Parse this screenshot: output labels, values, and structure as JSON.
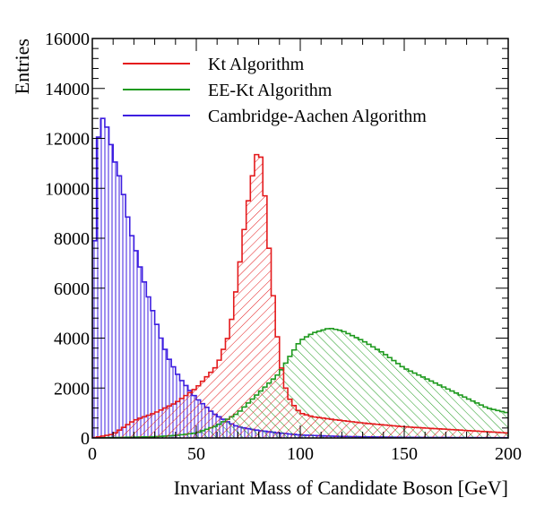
{
  "chart_data": {
    "type": "histogram",
    "title": "",
    "xlabel": "Invariant Mass of Candidate Boson [GeV]",
    "ylabel": "Entries",
    "xlim": [
      0,
      200
    ],
    "ylim": [
      0,
      16000
    ],
    "x_ticks": [
      "0",
      "50",
      "100",
      "150",
      "200"
    ],
    "y_ticks": [
      "0",
      "2000",
      "4000",
      "6000",
      "8000",
      "10000",
      "12000",
      "14000",
      "16000"
    ],
    "bin_width": 2,
    "legend_position": "top-right",
    "series": [
      {
        "name": "Kt Algorithm",
        "color": "#e41a1c",
        "hatch": "forward-diagonal",
        "bins": [
          [
            0,
            0
          ],
          [
            10,
            150
          ],
          [
            20,
            700
          ],
          [
            30,
            1000
          ],
          [
            40,
            1400
          ],
          [
            50,
            2000
          ],
          [
            60,
            2900
          ],
          [
            66,
            4200
          ],
          [
            70,
            6400
          ],
          [
            74,
            9000
          ],
          [
            78,
            11000
          ],
          [
            80,
            11700
          ],
          [
            82,
            10800
          ],
          [
            84,
            8600
          ],
          [
            86,
            6600
          ],
          [
            88,
            4800
          ],
          [
            90,
            3300
          ],
          [
            92,
            2300
          ],
          [
            94,
            1700
          ],
          [
            96,
            1400
          ],
          [
            100,
            1000
          ],
          [
            106,
            850
          ],
          [
            115,
            750
          ],
          [
            130,
            600
          ],
          [
            150,
            450
          ],
          [
            170,
            350
          ],
          [
            200,
            200
          ]
        ]
      },
      {
        "name": "EE-Kt Algorithm",
        "color": "#1f9a1f",
        "hatch": "back-diagonal",
        "bins": [
          [
            0,
            0
          ],
          [
            30,
            50
          ],
          [
            40,
            100
          ],
          [
            50,
            200
          ],
          [
            60,
            500
          ],
          [
            70,
            1000
          ],
          [
            80,
            1800
          ],
          [
            90,
            2600
          ],
          [
            96,
            3400
          ],
          [
            100,
            3900
          ],
          [
            106,
            4200
          ],
          [
            114,
            4400
          ],
          [
            120,
            4300
          ],
          [
            130,
            3900
          ],
          [
            140,
            3400
          ],
          [
            150,
            2800
          ],
          [
            160,
            2400
          ],
          [
            170,
            2000
          ],
          [
            180,
            1600
          ],
          [
            190,
            1200
          ],
          [
            200,
            1000
          ]
        ]
      },
      {
        "name": "Cambridge-Aachen Algorithm",
        "color": "#3d1ee0",
        "hatch": "vertical",
        "bins": [
          [
            0,
            4600
          ],
          [
            2,
            11200
          ],
          [
            4,
            12900
          ],
          [
            6,
            12700
          ],
          [
            8,
            12200
          ],
          [
            10,
            11300
          ],
          [
            12,
            10800
          ],
          [
            14,
            10200
          ],
          [
            16,
            9300
          ],
          [
            18,
            8400
          ],
          [
            20,
            7800
          ],
          [
            22,
            7200
          ],
          [
            24,
            6500
          ],
          [
            26,
            6000
          ],
          [
            28,
            5300
          ],
          [
            30,
            4900
          ],
          [
            32,
            4200
          ],
          [
            34,
            3800
          ],
          [
            36,
            3300
          ],
          [
            38,
            3000
          ],
          [
            40,
            2700
          ],
          [
            42,
            2400
          ],
          [
            44,
            2200
          ],
          [
            46,
            2000
          ],
          [
            48,
            1800
          ],
          [
            50,
            1600
          ],
          [
            54,
            1300
          ],
          [
            58,
            1000
          ],
          [
            62,
            800
          ],
          [
            66,
            600
          ],
          [
            70,
            450
          ],
          [
            80,
            300
          ],
          [
            90,
            200
          ],
          [
            100,
            120
          ],
          [
            120,
            60
          ],
          [
            150,
            25
          ],
          [
            200,
            10
          ]
        ]
      }
    ]
  }
}
